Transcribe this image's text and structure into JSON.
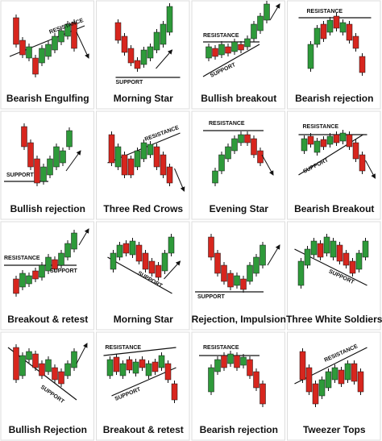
{
  "cells": [
    {
      "caption": "Bearish Engulfing",
      "labels": [
        "RESISTANCE"
      ]
    },
    {
      "caption": "Morning Star",
      "labels": [
        "SUPPORT"
      ]
    },
    {
      "caption": "Bullish breakout",
      "labels": [
        "RESISTANCE",
        "SUPPORT"
      ]
    },
    {
      "caption": "Bearish rejection",
      "labels": [
        "RESISTANCE"
      ]
    },
    {
      "caption": "Bullish rejection",
      "labels": [
        "SUPPORT"
      ]
    },
    {
      "caption": "Three Red Crows",
      "labels": [
        "RESISTANCE"
      ]
    },
    {
      "caption": "Evening Star",
      "labels": [
        "RESISTANCE"
      ]
    },
    {
      "caption": "Bearish Breakout",
      "labels": [
        "RESISTANCE",
        "SUPPORT"
      ]
    },
    {
      "caption": "Breakout & retest",
      "labels": [
        "RESISTANCE",
        "SUPPORT"
      ]
    },
    {
      "caption": "Morning Star",
      "labels": [
        "SUPPORT"
      ]
    },
    {
      "caption": "Rejection, Impulsion",
      "labels": [
        "SUPPORT"
      ]
    },
    {
      "caption": "Three White Soldiers",
      "labels": [
        "SUPPORT"
      ]
    },
    {
      "caption": "Bullish Rejection",
      "labels": [
        "SUPPORT"
      ]
    },
    {
      "caption": "Breakout & retest",
      "labels": [
        "RESISTANCE",
        "SUPPORT"
      ]
    },
    {
      "caption": "Bearish rejection",
      "labels": [
        "RESISTANCE"
      ]
    },
    {
      "caption": "Tweezer Tops",
      "labels": [
        "RESISTANCE"
      ]
    }
  ]
}
